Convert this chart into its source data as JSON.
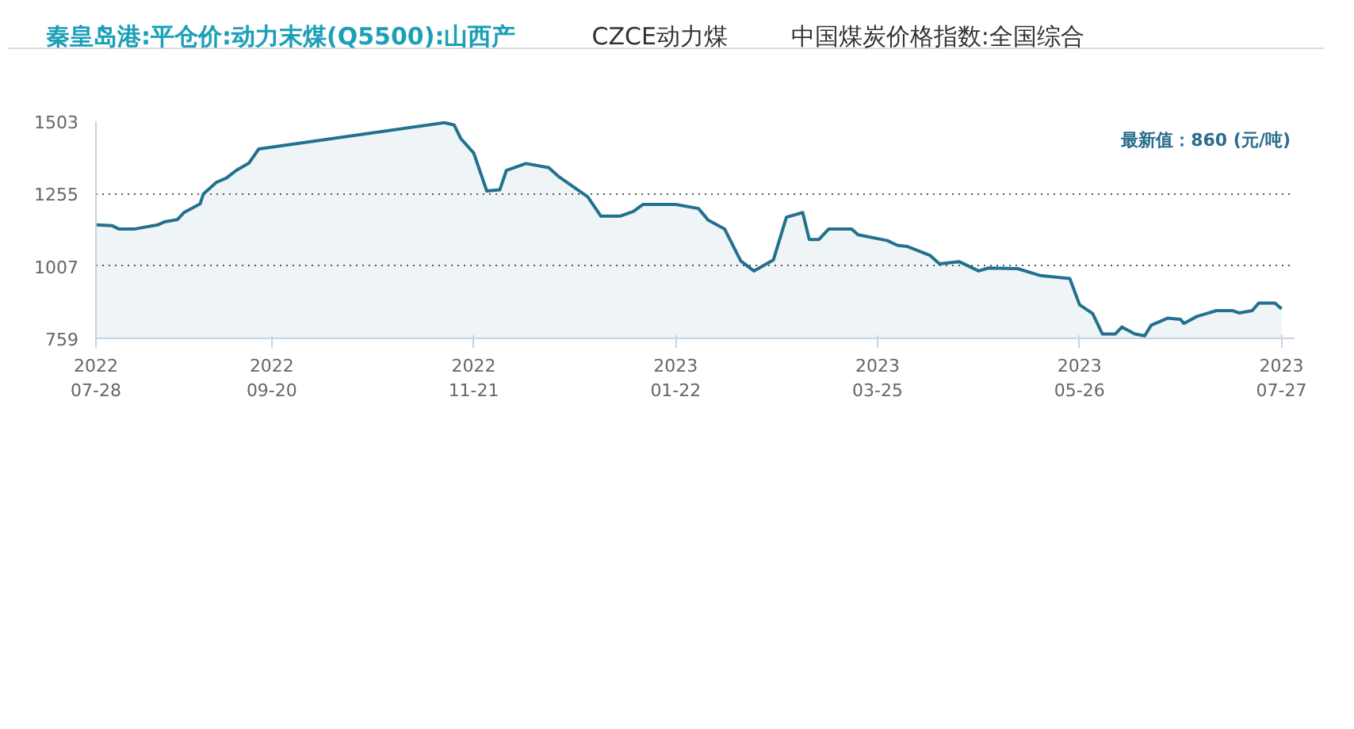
{
  "chart_data": {
    "type": "area",
    "title": "秦皇岛港:平仓价:动力末煤(Q5500):山西产",
    "annotations": [
      "CZCE动力煤",
      "中国煤炭价格指数:全国综合"
    ],
    "x": [
      "2022-07-28",
      "2022-08-02",
      "2022-08-04",
      "2022-08-09",
      "2022-08-16",
      "2022-08-18",
      "2022-08-22",
      "2022-08-24",
      "2022-08-29",
      "2022-08-30",
      "2022-09-03",
      "2022-09-06",
      "2022-09-09",
      "2022-09-13",
      "2022-09-16",
      "2022-11-12",
      "2022-11-15",
      "2022-11-17",
      "2022-11-21",
      "2022-11-25",
      "2022-11-29",
      "2022-12-01",
      "2022-12-07",
      "2022-12-14",
      "2022-12-17",
      "2022-12-26",
      "2022-12-30",
      "2023-01-05",
      "2023-01-09",
      "2023-01-12",
      "2023-01-22",
      "2023-01-29",
      "2023-02-01",
      "2023-02-06",
      "2023-02-11",
      "2023-02-15",
      "2023-02-21",
      "2023-02-25",
      "2023-03-02",
      "2023-03-04",
      "2023-03-07",
      "2023-03-10",
      "2023-03-17",
      "2023-03-19",
      "2023-03-28",
      "2023-03-31",
      "2023-04-03",
      "2023-04-10",
      "2023-04-13",
      "2023-04-19",
      "2023-04-25",
      "2023-04-28",
      "2023-05-07",
      "2023-05-14",
      "2023-05-23",
      "2023-05-26",
      "2023-05-30",
      "2023-06-02",
      "2023-06-06",
      "2023-06-08",
      "2023-06-12",
      "2023-06-15",
      "2023-06-17",
      "2023-06-22",
      "2023-06-26",
      "2023-06-27",
      "2023-07-01",
      "2023-07-07",
      "2023-07-12",
      "2023-07-14",
      "2023-07-18",
      "2023-07-20",
      "2023-07-25",
      "2023-07-27"
    ],
    "series": [
      {
        "name": "最新值：860 (元/吨)",
        "color": "#23708f",
        "values": [
          1148,
          1145,
          1134,
          1134,
          1148,
          1158,
          1166,
          1190,
          1220,
          1254,
          1294,
          1308,
          1334,
          1360,
          1408,
          1498,
          1490,
          1444,
          1394,
          1264,
          1268,
          1334,
          1358,
          1344,
          1314,
          1244,
          1178,
          1178,
          1194,
          1218,
          1218,
          1204,
          1164,
          1134,
          1024,
          990,
          1028,
          1174,
          1190,
          1098,
          1098,
          1134,
          1134,
          1114,
          1094,
          1078,
          1074,
          1044,
          1014,
          1022,
          990,
          1000,
          998,
          974,
          964,
          874,
          844,
          774,
          774,
          798,
          774,
          768,
          804,
          828,
          824,
          810,
          834,
          854,
          854,
          846,
          854,
          880,
          880,
          860
        ]
      }
    ],
    "xlim": [
      "2022-07-28",
      "2023-07-31"
    ],
    "xticks": [
      {
        "value": "2022-07-28",
        "label": "2022\n07-28"
      },
      {
        "value": "2022-09-20",
        "label": "2022\n09-20"
      },
      {
        "value": "2022-11-21",
        "label": "2022\n11-21"
      },
      {
        "value": "2023-01-22",
        "label": "2023\n01-22"
      },
      {
        "value": "2023-03-25",
        "label": "2023\n03-25"
      },
      {
        "value": "2023-05-26",
        "label": "2023\n05-26"
      },
      {
        "value": "2023-07-27",
        "label": "2023\n07-27"
      }
    ],
    "ylim": [
      759,
      1503
    ],
    "yticks": [
      759,
      1007,
      1255,
      1503
    ],
    "grid": "y",
    "legend": "top right",
    "marker": "none",
    "line_style": "solid"
  }
}
